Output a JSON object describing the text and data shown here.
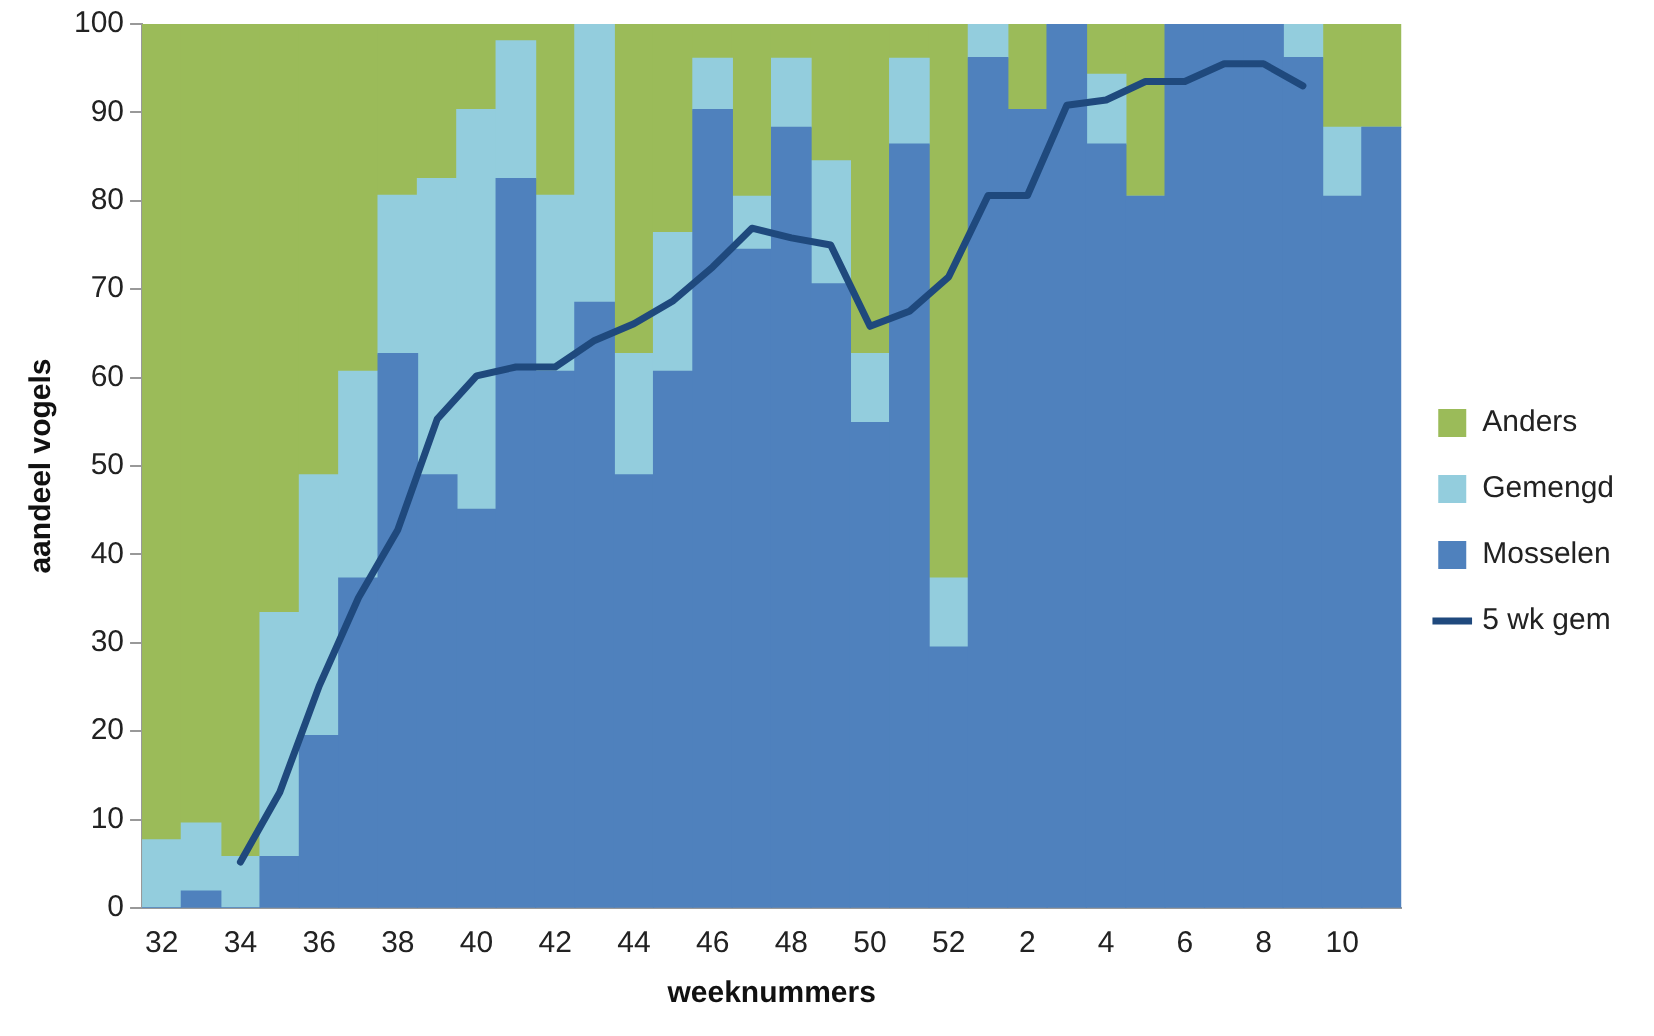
{
  "chart_data": {
    "type": "bar",
    "stacked": true,
    "xlabel": "weeknummers",
    "ylabel": "aandeel vogels",
    "categories": [
      "32",
      null,
      "34",
      null,
      "36",
      null,
      "38",
      null,
      "40",
      null,
      "42",
      null,
      "44",
      null,
      "46",
      null,
      "48",
      null,
      "50",
      null,
      "52",
      null,
      "2",
      null,
      "4",
      null,
      "6",
      null,
      "8",
      null,
      "10",
      null
    ],
    "series": [
      {
        "name": "Mosselen",
        "color": "#4f81bd",
        "values": [
          0,
          1.9,
          0,
          5.8,
          19.5,
          37.3,
          62.7,
          49.0,
          45.1,
          82.5,
          60.7,
          68.5,
          49.0,
          60.7,
          90.3,
          74.5,
          88.3,
          70.6,
          54.9,
          86.4,
          29.5,
          96.2,
          90.3,
          100,
          86.4,
          80.5,
          100,
          100,
          100,
          96.2,
          80.5,
          88.3
        ]
      },
      {
        "name": "Gemengd",
        "color": "#93cddd",
        "values": [
          7.7,
          7.7,
          5.8,
          27.6,
          29.5,
          23.4,
          17.9,
          33.5,
          45.2,
          15.6,
          19.9,
          31.5,
          13.7,
          15.7,
          5.8,
          6.0,
          7.8,
          13.9,
          7.8,
          9.7,
          7.8,
          3.8,
          0,
          0,
          7.9,
          0,
          0,
          0,
          0,
          3.8,
          7.8,
          0
        ]
      },
      {
        "name": "Anders",
        "color": "#9bbb59",
        "values": [
          92.3,
          90.4,
          94.2,
          66.6,
          51.0,
          39.3,
          19.4,
          17.5,
          9.7,
          1.9,
          19.4,
          0,
          37.3,
          23.6,
          3.9,
          19.5,
          3.9,
          15.5,
          37.3,
          3.9,
          62.7,
          0,
          9.7,
          0,
          5.7,
          19.5,
          0,
          0,
          0,
          0,
          11.7,
          11.7
        ]
      },
      {
        "name": "5 wk gem",
        "type": "line",
        "color": "#1f497d",
        "values": [
          null,
          null,
          5.2,
          13.1,
          25.1,
          35.1,
          42.8,
          55.3,
          60.2,
          61.2,
          61.2,
          64.2,
          66.1,
          68.7,
          72.5,
          76.9,
          75.8,
          75.0,
          65.8,
          67.5,
          71.4,
          80.6,
          80.6,
          90.8,
          91.4,
          93.5,
          93.5,
          95.5,
          95.5,
          93.0,
          null,
          null
        ]
      }
    ],
    "ylim": [
      0,
      100
    ],
    "yticks": [
      0,
      10,
      20,
      30,
      40,
      50,
      60,
      70,
      80,
      90,
      100
    ],
    "grid": false,
    "legend": "right",
    "marker": "none"
  }
}
